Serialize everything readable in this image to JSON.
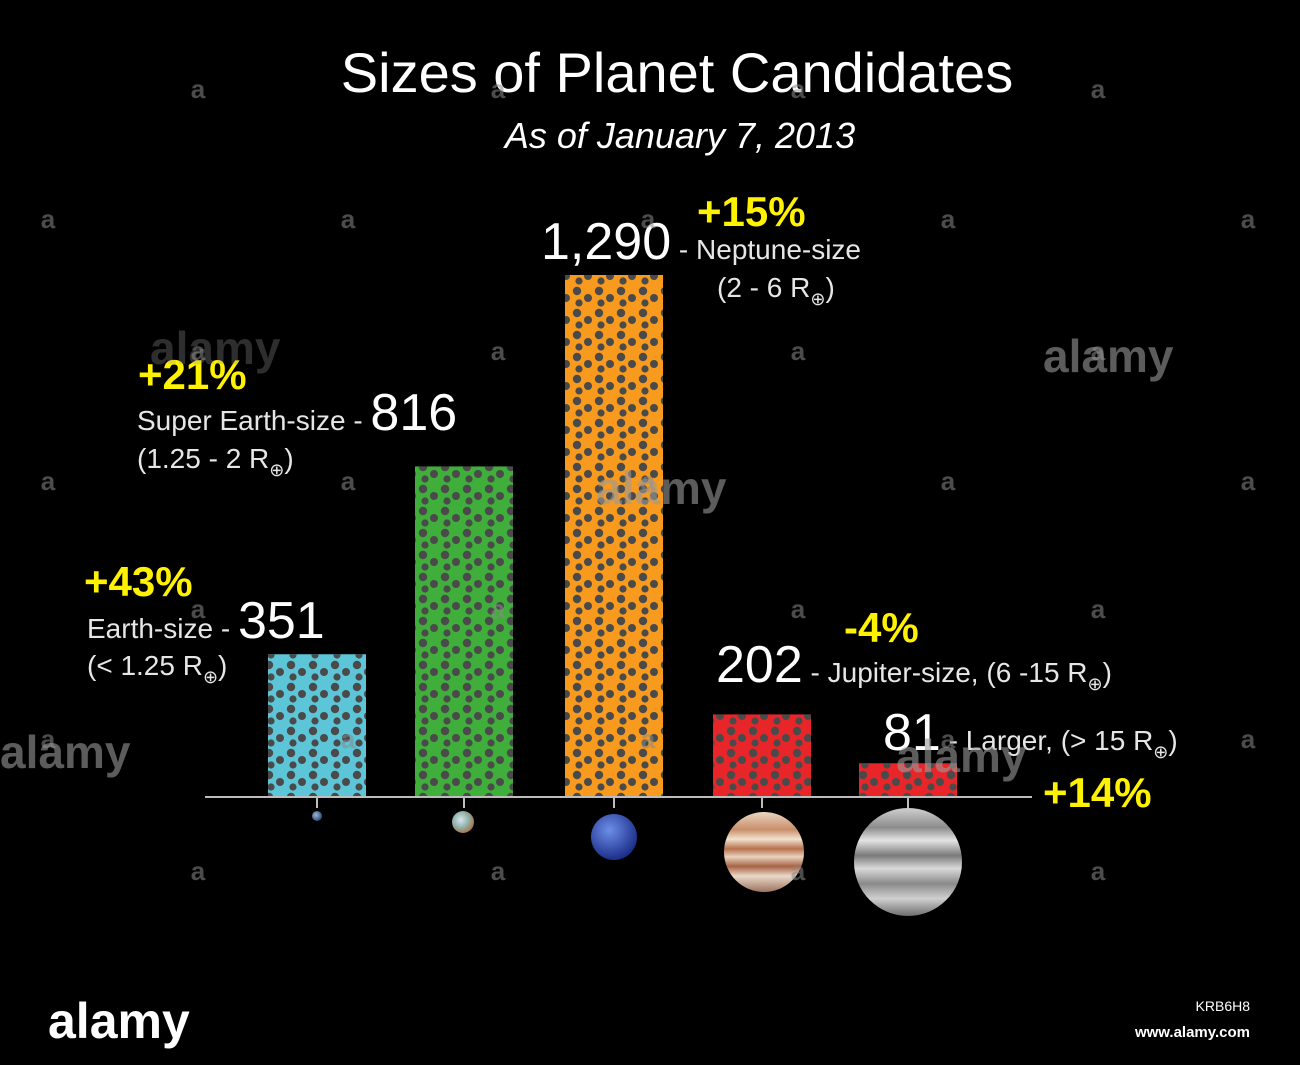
{
  "chart_data": {
    "type": "bar",
    "title": "Sizes of Planet Candidates",
    "subtitle": "As of January 7, 2013",
    "xlabel": "",
    "ylabel": "",
    "ylim": [
      0,
      1300
    ],
    "grid": false,
    "legend": "none",
    "categories": [
      "Earth-size",
      "Super Earth-size",
      "Neptune-size",
      "Jupiter-size",
      "Larger"
    ],
    "values": [
      351,
      816,
      1290,
      202,
      81
    ],
    "value_labels": [
      "351",
      "816",
      "1,290",
      "202",
      "81"
    ],
    "range_labels": [
      "(< 1.25 R",
      "(1.25 - 2 R",
      "(2 - 6 R",
      "(6 -15 R",
      "(> 15 R"
    ],
    "changes": [
      "+43%",
      "+21%",
      "+15%",
      "-4%",
      "+14%"
    ],
    "colors": [
      "#5cc6d8",
      "#3fae3a",
      "#f79a1e",
      "#e8262a",
      "#e8262a"
    ],
    "change_color": "#fff200",
    "planet_icons": [
      "earth-icon",
      "super-earth-icon",
      "neptune-icon",
      "jupiter-icon",
      "large-gas-giant-icon"
    ]
  },
  "labels": {
    "earth_text": "Earth-size - ",
    "super_earth_text": "Super Earth-size - ",
    "neptune_text": " - Neptune-size",
    "jupiter_text": " - Jupiter-size, ",
    "larger_text": " - Larger, ",
    "close_paren": ")"
  },
  "watermark": {
    "brand": "alamy",
    "small": "a",
    "image_id": "KRB6H8",
    "url": "www.alamy.com"
  }
}
